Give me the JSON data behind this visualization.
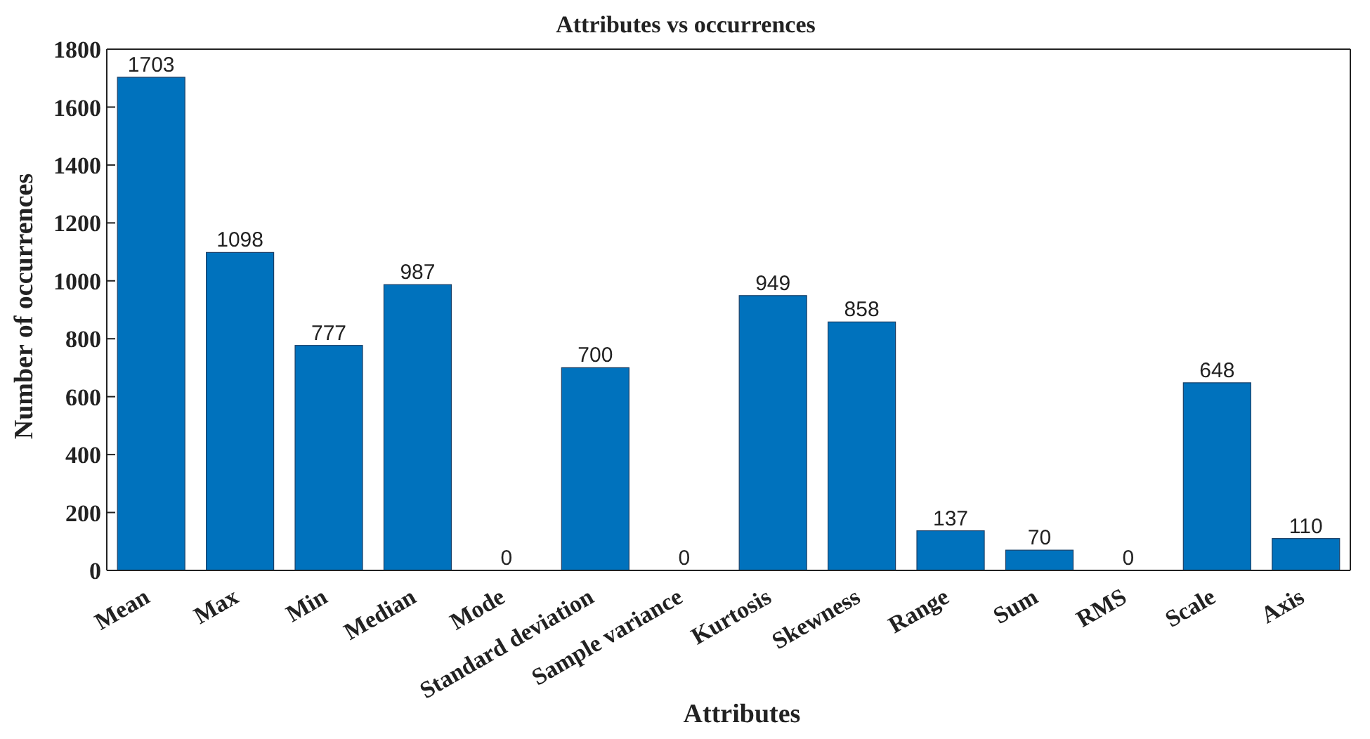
{
  "chart_data": {
    "type": "bar",
    "title": "Attributes vs occurrences",
    "xlabel": "Attributes",
    "ylabel": "Number of occurrences",
    "categories": [
      "Mean",
      "Max",
      "Min",
      "Median",
      "Mode",
      "Standard deviation",
      "Sample variance",
      "Kurtosis",
      "Skewness",
      "Range",
      "Sum",
      "RMS",
      "Scale",
      "Axis"
    ],
    "values": [
      1703,
      1098,
      777,
      987,
      0,
      700,
      0,
      949,
      858,
      137,
      70,
      0,
      648,
      110
    ],
    "color": "#0072bd",
    "ylim": [
      0,
      1800
    ],
    "yticks": [
      0,
      200,
      400,
      600,
      800,
      1000,
      1200,
      1400,
      1600,
      1800
    ],
    "data_labels": true
  }
}
